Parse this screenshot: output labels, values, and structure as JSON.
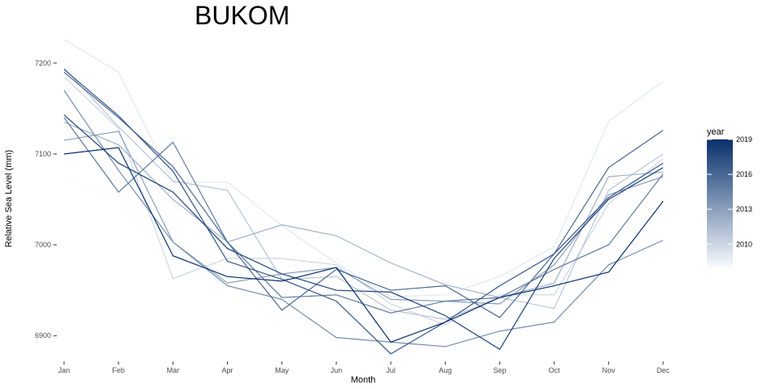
{
  "chart_data": {
    "type": "line",
    "title": "BUKOM",
    "xlabel": "Month",
    "ylabel": "Relative Sea Level (mm)",
    "categories": [
      "Jan",
      "Feb",
      "Mar",
      "Apr",
      "May",
      "Jun",
      "Jul",
      "Aug",
      "Sep",
      "Oct",
      "Nov",
      "Dec"
    ],
    "yticks": [
      6900,
      7000,
      7100,
      7200
    ],
    "ylim": [
      6877,
      7232
    ],
    "grid": false,
    "legend": {
      "title": "year",
      "position": "right",
      "type": "colorbar",
      "range": [
        2008,
        2019
      ],
      "ticks": [
        2010,
        2013,
        2016,
        2019
      ],
      "color_low": "#f7fbff",
      "color_high": "#08306b"
    },
    "series": [
      {
        "year": 2008,
        "values": [
          7075,
          7050,
          6975,
          6965,
          6975,
          6985,
          6950,
          6882,
          6940,
          6995,
          7035,
          7065
        ]
      },
      {
        "year": 2009,
        "values": [
          7226,
          7190,
          7069,
          7069,
          7021,
          6980,
          6943,
          6945,
          6965,
          6998,
          7136,
          7180
        ]
      },
      {
        "year": 2010,
        "values": [
          7185,
          7128,
          6963,
          6985,
          6985,
          6978,
          6935,
          6912,
          6945,
          6945,
          7045,
          7095
        ]
      },
      {
        "year": 2011,
        "values": [
          7195,
          7130,
          7070,
          7060,
          6962,
          6965,
          6928,
          6918,
          6942,
          6930,
          7060,
          7100
        ]
      },
      {
        "year": 2012,
        "values": [
          7135,
          7110,
          7050,
          7003,
          7022,
          7010,
          6980,
          6956,
          6942,
          6958,
          7075,
          7080
        ]
      },
      {
        "year": 2013,
        "values": [
          7115,
          7125,
          7003,
          6958,
          6968,
          6975,
          6940,
          6938,
          6935,
          6978,
          7055,
          7075
        ]
      },
      {
        "year": 2014,
        "values": [
          7170,
          7082,
          7003,
          6955,
          6940,
          6898,
          6893,
          6888,
          6905,
          6915,
          6978,
          7005
        ]
      },
      {
        "year": 2015,
        "values": [
          7140,
          7058,
          7113,
          7003,
          6942,
          6945,
          6925,
          6938,
          6942,
          6973,
          7000,
          7078
        ]
      },
      {
        "year": 2016,
        "values": [
          7190,
          7140,
          7086,
          7003,
          6928,
          6973,
          6950,
          6955,
          6920,
          6990,
          7085,
          7126
        ]
      },
      {
        "year": 2017,
        "values": [
          7193,
          7142,
          7081,
          6982,
          6962,
          6938,
          6880,
          6915,
          6955,
          6990,
          7052,
          7090
        ]
      },
      {
        "year": 2018,
        "values": [
          7143,
          7090,
          7058,
          6996,
          6968,
          6950,
          6948,
          6922,
          6885,
          6985,
          7050,
          7085
        ]
      },
      {
        "year": 2019,
        "values": [
          7100,
          7107,
          6988,
          6965,
          6960,
          6975,
          6893,
          6915,
          6942,
          6955,
          6970,
          7048
        ]
      }
    ]
  }
}
